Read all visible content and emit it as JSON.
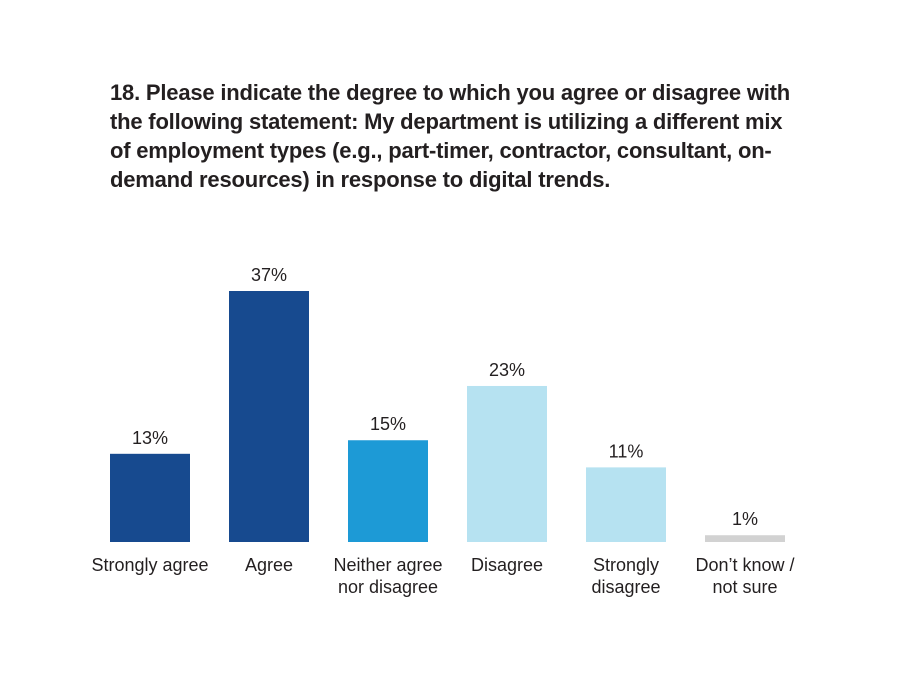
{
  "chart_data": {
    "type": "bar",
    "title": "18. Please indicate the degree to which you agree or disagree with the following statement: My department is utilizing a different mix of employment types (e.g., part-timer, contractor, consultant, on-demand resources) in response to digital trends.",
    "categories": [
      "Strongly agree",
      "Agree",
      "Neither agree nor disagree",
      "Disagree",
      "Strongly disagree",
      "Don’t know / not sure"
    ],
    "values": [
      13,
      37,
      15,
      23,
      11,
      1
    ],
    "value_labels": [
      "13%",
      "37%",
      "15%",
      "23%",
      "11%",
      "1%"
    ],
    "colors": [
      "#174a8f",
      "#174a8f",
      "#1d9ad6",
      "#b6e2f1",
      "#b6e2f1",
      "#d2d2d2"
    ]
  }
}
